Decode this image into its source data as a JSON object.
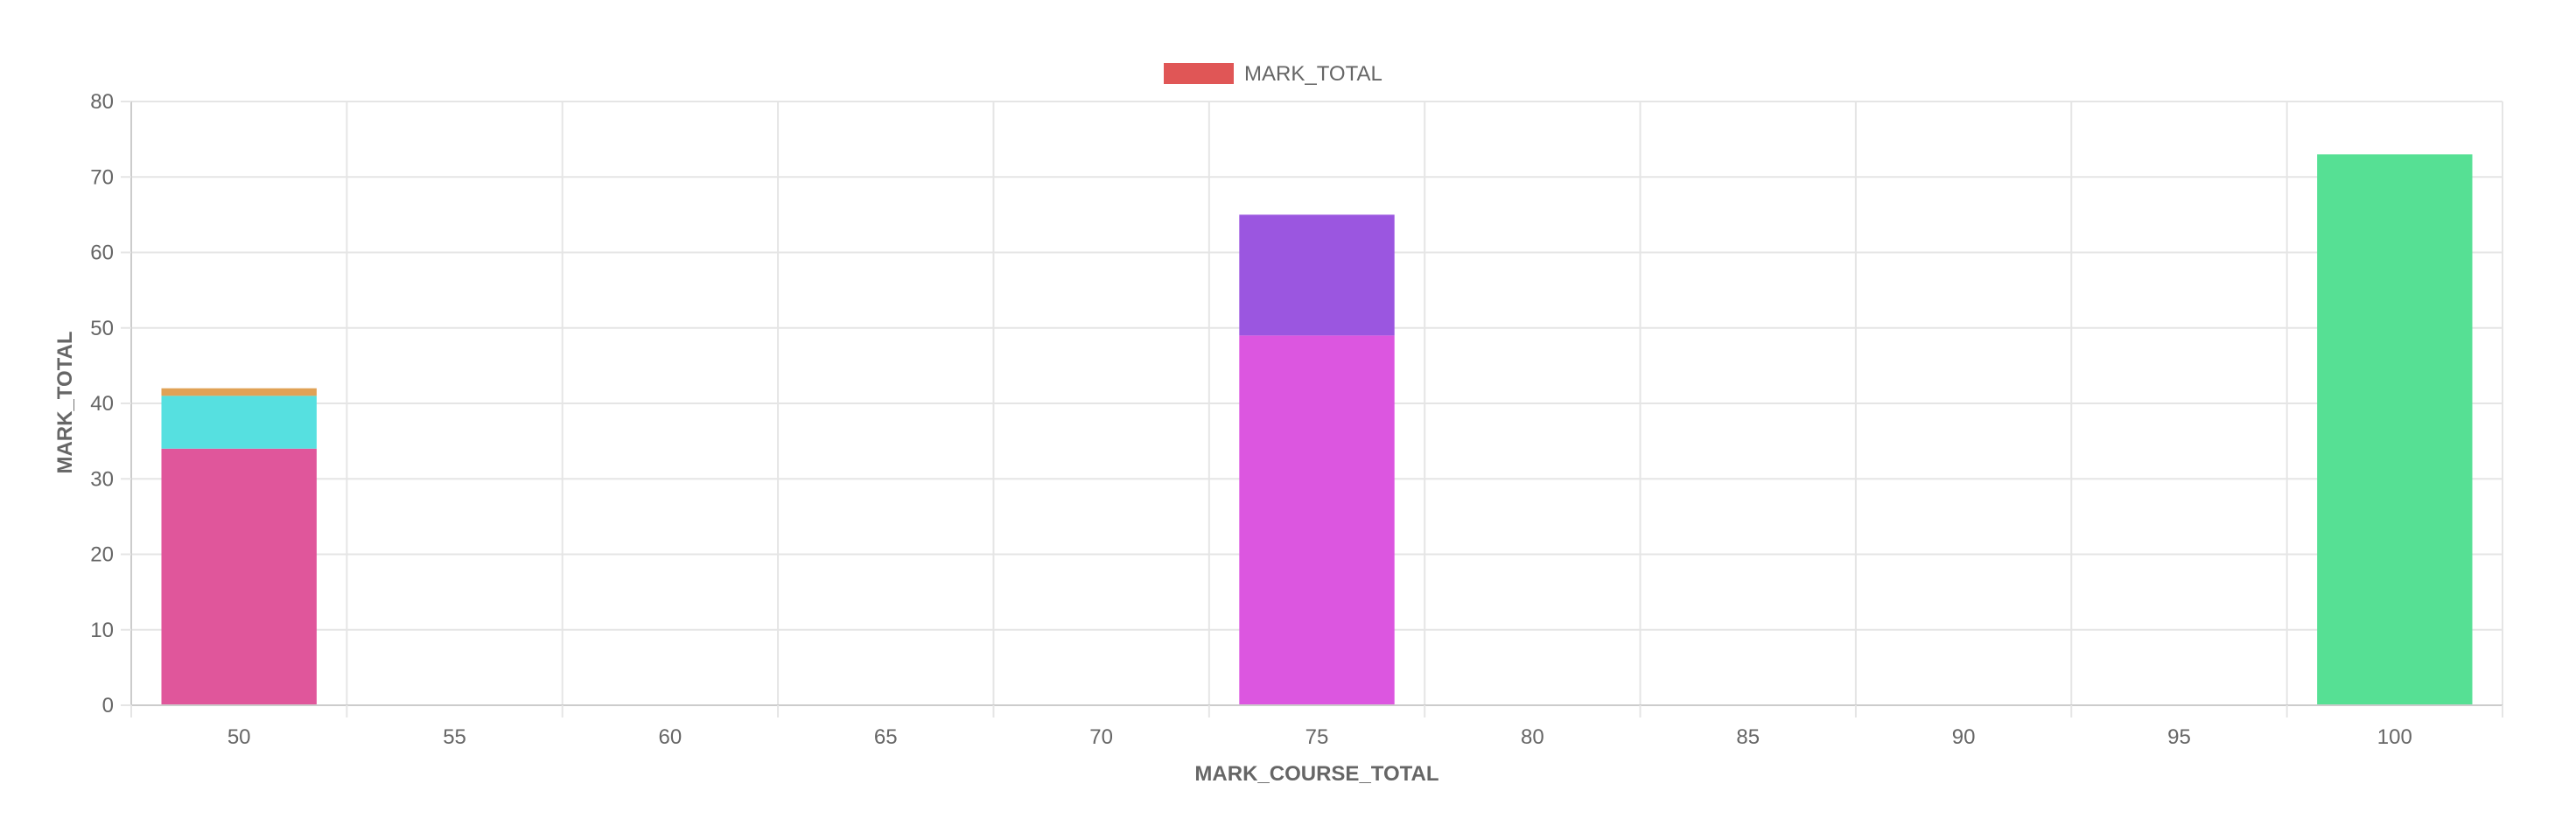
{
  "chart_data": {
    "type": "bar",
    "stacked": true,
    "categories": [
      "50",
      "55",
      "60",
      "65",
      "70",
      "75",
      "80",
      "85",
      "90",
      "95",
      "100"
    ],
    "xlabel": "MARK_COURSE_TOTAL",
    "ylabel": "MARK_TOTAL",
    "ylim": [
      0,
      80
    ],
    "yticks": [
      "0",
      "10",
      "20",
      "30",
      "40",
      "50",
      "60",
      "70",
      "80"
    ],
    "grid": true,
    "legend": {
      "position": "top",
      "label": "MARK_TOTAL",
      "color": "#e05656"
    },
    "stacks": [
      {
        "category": "50",
        "segments": [
          {
            "from": 0,
            "to": 34,
            "color": "#e0569b"
          },
          {
            "from": 34,
            "to": 41,
            "color": "#56e0e0"
          },
          {
            "from": 41,
            "to": 42,
            "color": "#e0a256"
          }
        ]
      },
      {
        "category": "75",
        "segments": [
          {
            "from": 0,
            "to": 49,
            "color": "#dc56e0"
          },
          {
            "from": 49,
            "to": 65,
            "color": "#9b56e0"
          }
        ]
      },
      {
        "category": "100",
        "segments": [
          {
            "from": 0,
            "to": 73,
            "color": "#56e094"
          }
        ]
      }
    ]
  }
}
